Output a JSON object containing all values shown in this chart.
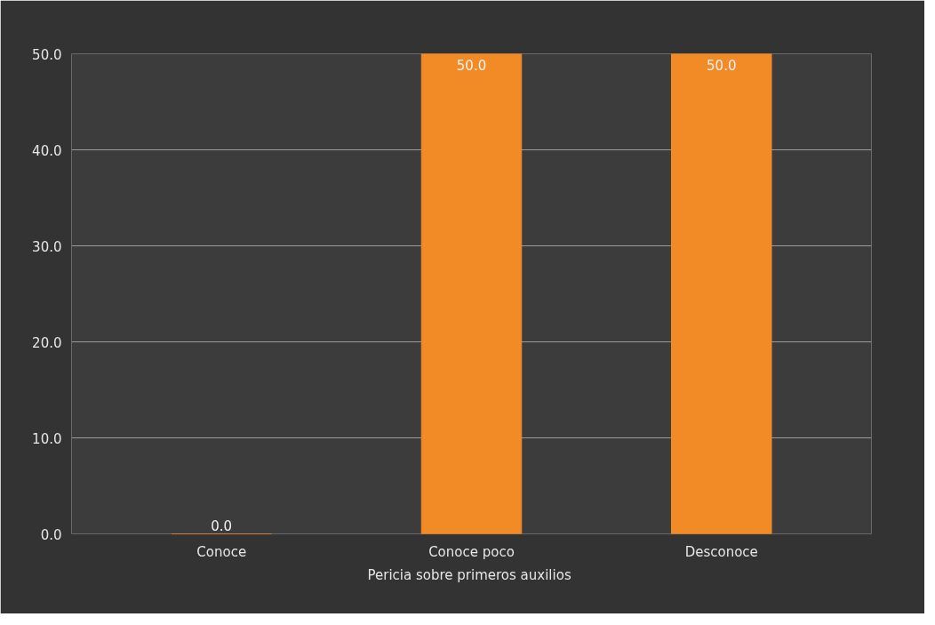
{
  "chart_data": {
    "type": "bar",
    "xlabel": "Pericia  sobre primeros auxilios",
    "categories": [
      "Conoce",
      "Conoce poco",
      "Desconoce"
    ],
    "values": [
      0,
      50,
      50
    ],
    "value_labels": [
      "0.0",
      "50.0",
      "50.0"
    ],
    "color": "#f28a26",
    "ylim": [
      0,
      50
    ],
    "yticks": [
      {
        "value": 0,
        "label": "0.0"
      },
      {
        "value": 10,
        "label": "10.0"
      },
      {
        "value": 20,
        "label": "20.0"
      },
      {
        "value": 30,
        "label": "30.0"
      },
      {
        "value": 40,
        "label": "40.0"
      },
      {
        "value": 50,
        "label": "50.0"
      }
    ],
    "grid": "y"
  }
}
